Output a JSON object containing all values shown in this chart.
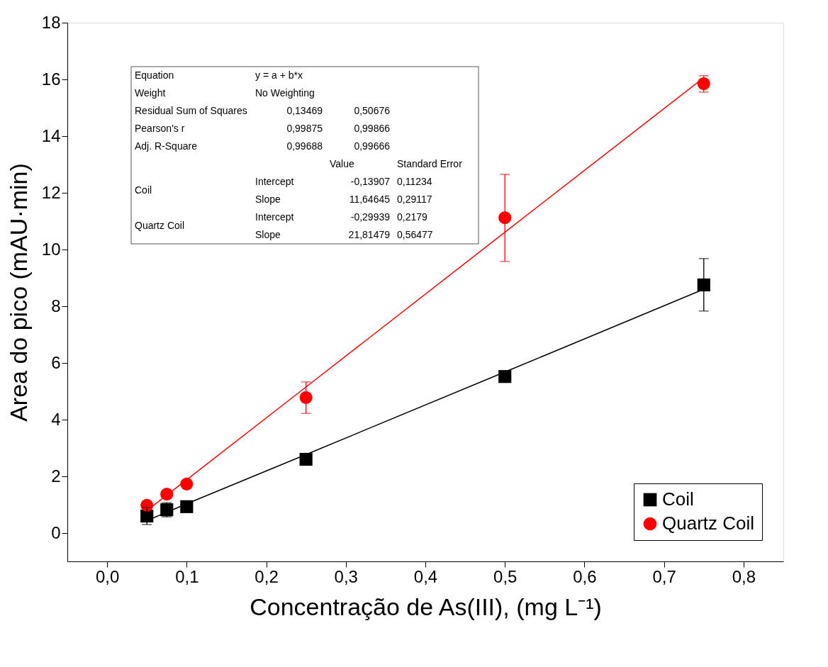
{
  "chart_data": {
    "type": "scatter",
    "xlabel": "Concentração de As(III),  (mg L⁻¹)",
    "ylabel": "Area do pico (mAU·min)",
    "xlim": [
      -0.05,
      0.85
    ],
    "ylim": [
      -1,
      18
    ],
    "xticks": [
      {
        "value": 0,
        "label": "0,0"
      },
      {
        "value": 0.1,
        "label": "0,1"
      },
      {
        "value": 0.2,
        "label": "0,2"
      },
      {
        "value": 0.3,
        "label": "0,3"
      },
      {
        "value": 0.4,
        "label": "0,4"
      },
      {
        "value": 0.5,
        "label": "0,5"
      },
      {
        "value": 0.6,
        "label": "0,6"
      },
      {
        "value": 0.7,
        "label": "0,7"
      },
      {
        "value": 0.8,
        "label": "0,8"
      }
    ],
    "yticks": [
      0,
      2,
      4,
      6,
      8,
      10,
      12,
      14,
      16,
      18
    ],
    "grid": false,
    "legend": "bottom right",
    "x": [
      0.05,
      0.075,
      0.1,
      0.25,
      0.5,
      0.75
    ],
    "series": [
      {
        "name": "Coil",
        "color": "#000000",
        "marker": "square",
        "values": [
          0.6,
          0.82,
          0.93,
          2.6,
          5.52,
          8.75
        ],
        "errors": [
          0.3,
          0.25,
          0.1,
          0.1,
          0.1,
          [
            7.83,
            9.68
          ]
        ]
      },
      {
        "name": "Quartz Coil",
        "color": "#ff0000",
        "marker": "circle",
        "values": [
          0.98,
          1.37,
          1.73,
          4.78,
          11.12,
          15.85
        ],
        "errors": [
          0.1,
          0.1,
          0.1,
          [
            4.22,
            5.33
          ],
          [
            9.58,
            12.65
          ],
          [
            15.55,
            16.13
          ]
        ]
      },
      {
        "type": "line",
        "color": "#000000",
        "values": [
          0.44,
          0.73,
          1.03,
          2.77,
          5.68,
          8.6
        ]
      },
      {
        "type": "line",
        "color": "#ff0000",
        "values": [
          0.79,
          1.34,
          1.88,
          5.15,
          10.61,
          16.06
        ]
      }
    ],
    "annotations": [
      "Equation",
      "y = a + b*x",
      "Weight",
      "No Weighting",
      "Residual Sum of Squares",
      "0,13469",
      "0,50676",
      "Pearson's r",
      "0,99875",
      "0,99866",
      "Adj. R-Square",
      "0,99688",
      "0,99666",
      "Value",
      "Standard Error",
      "Coil",
      "Intercept",
      "-0,13907",
      "0,11234",
      "Slope",
      "11,64645",
      "0,29117",
      "Quartz Coil",
      "Intercept",
      "-0,29939",
      "0,2179",
      "Slope",
      "21,81479",
      "0,56477"
    ]
  }
}
